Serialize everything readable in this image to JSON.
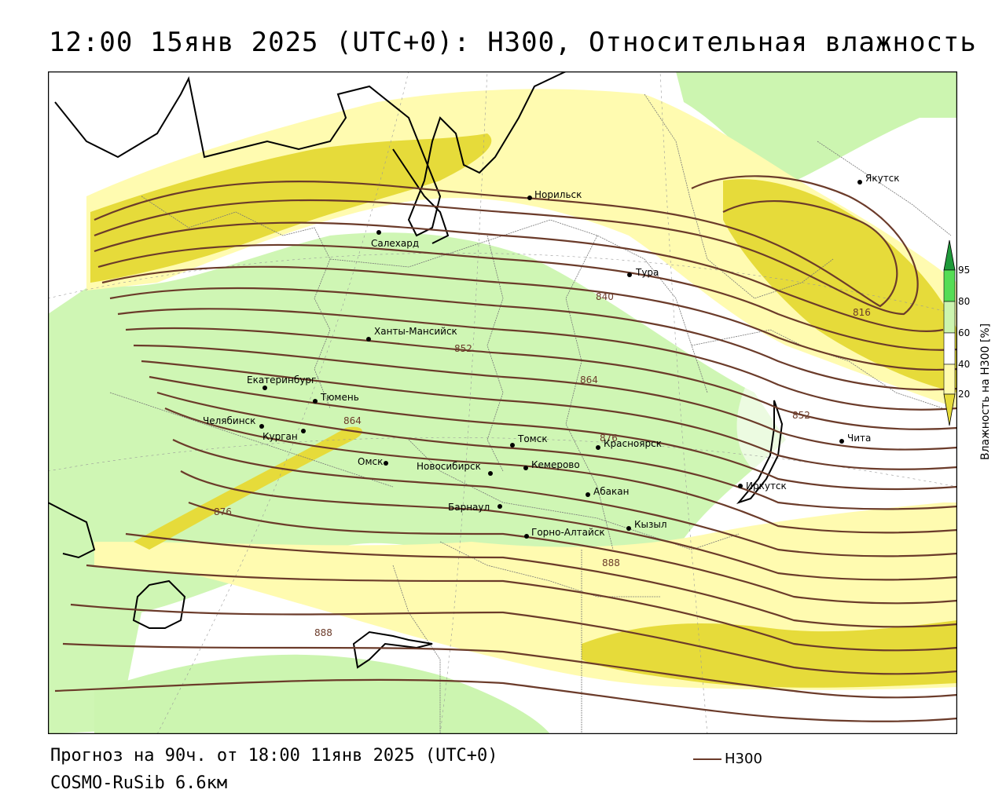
{
  "title": "12:00 15янв 2025 (UTC+0): H300, Относительная влажность",
  "footer": {
    "forecast": "Прогноз на 90ч. от 18:00 11янв 2025 (UTC+0)",
    "model": "COSMO-RuSib 6.6км"
  },
  "legend": {
    "line_label": "H300",
    "line_color": "#6b3b2a"
  },
  "colorbar": {
    "label": "Влажность на H300 [%]",
    "ticks": [
      "95",
      "80",
      "60",
      "40",
      "20"
    ],
    "colors": {
      "lt60": "#fffbb0",
      "60to80": "#ccf5b0",
      "80to95": "#55dd55",
      "gt95": "#1f9a3a",
      "dry": "#e6db3a"
    }
  },
  "cities": [
    {
      "name": "Якутск"
    },
    {
      "name": "Норильск"
    },
    {
      "name": "Салехард"
    },
    {
      "name": "Тура"
    },
    {
      "name": "Ханты-Мансийск"
    },
    {
      "name": "Екатеринбург"
    },
    {
      "name": "Тюмень"
    },
    {
      "name": "Челябинск"
    },
    {
      "name": "Курган"
    },
    {
      "name": "Омск"
    },
    {
      "name": "Новосибирск"
    },
    {
      "name": "Томск"
    },
    {
      "name": "Кемерово"
    },
    {
      "name": "Красноярск"
    },
    {
      "name": "Барнаул"
    },
    {
      "name": "Абакан"
    },
    {
      "name": "Горно-Алтайск"
    },
    {
      "name": "Кызыл"
    },
    {
      "name": "Иркутск"
    },
    {
      "name": "Чита"
    }
  ],
  "contour_labels": [
    "816",
    "840",
    "852",
    "864",
    "864",
    "876",
    "876",
    "852",
    "888",
    "888"
  ]
}
